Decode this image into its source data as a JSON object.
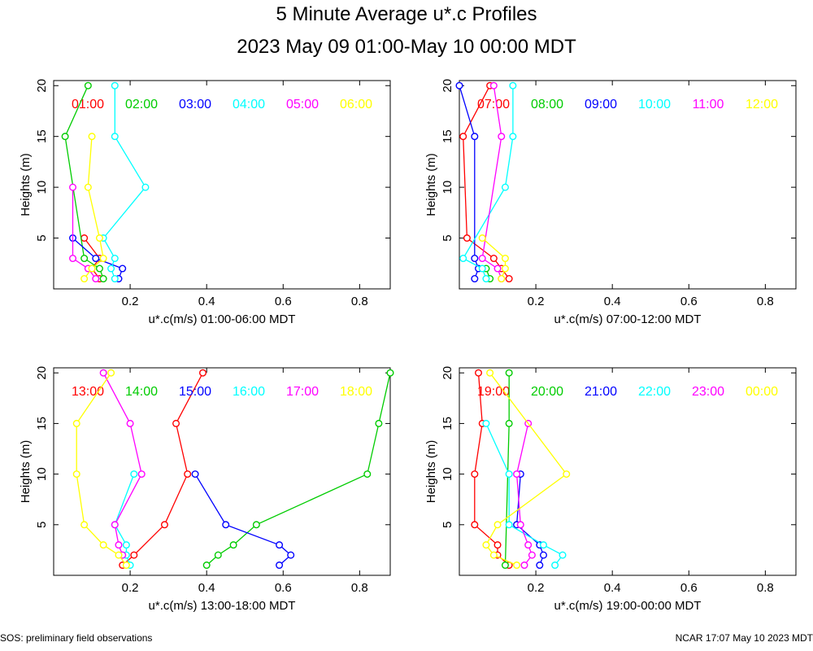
{
  "title": "5 Minute Average u*.c Profiles",
  "subtitle": "2023 May 09 01:00-May 10 00:00 MDT",
  "footer_left": "SOS: preliminary field observations",
  "footer_right": "NCAR 17:07 May 10 2023 MDT",
  "colors": [
    "#ff0000",
    "#00cc00",
    "#0000ff",
    "#00ffff",
    "#ff00ff",
    "#ffff00"
  ],
  "chart_data": [
    {
      "type": "line",
      "xlabel": "u*.c(m/s) 01:00-06:00 MDT",
      "ylabel": "Heights (m)",
      "xlim": [
        0,
        0.88
      ],
      "ylim": [
        0,
        20.5
      ],
      "xticks": [
        0.2,
        0.4,
        0.6,
        0.8
      ],
      "yticks": [
        5,
        10,
        15,
        20
      ],
      "series": [
        {
          "name": "01:00",
          "points": [
            [
              0.12,
              1
            ],
            [
              0.1,
              2
            ],
            [
              0.12,
              3
            ],
            [
              0.08,
              5
            ]
          ]
        },
        {
          "name": "02:00",
          "points": [
            [
              0.13,
              1
            ],
            [
              0.12,
              2
            ],
            [
              0.08,
              3
            ],
            [
              0.03,
              15
            ],
            [
              0.09,
              20
            ]
          ]
        },
        {
          "name": "03:00",
          "points": [
            [
              0.17,
              1
            ],
            [
              0.18,
              2
            ],
            [
              0.11,
              3
            ],
            [
              0.05,
              5
            ]
          ]
        },
        {
          "name": "04:00",
          "points": [
            [
              0.16,
              1
            ],
            [
              0.15,
              2
            ],
            [
              0.16,
              3
            ],
            [
              0.13,
              5
            ],
            [
              0.24,
              10
            ],
            [
              0.16,
              15
            ],
            [
              0.16,
              20
            ]
          ]
        },
        {
          "name": "05:00",
          "points": [
            [
              0.11,
              1
            ],
            [
              0.09,
              2
            ],
            [
              0.05,
              3
            ],
            [
              0.05,
              10
            ]
          ]
        },
        {
          "name": "06:00",
          "points": [
            [
              0.08,
              1
            ],
            [
              0.1,
              2
            ],
            [
              0.13,
              3
            ],
            [
              0.12,
              5
            ],
            [
              0.09,
              10
            ],
            [
              0.1,
              15
            ]
          ]
        }
      ]
    },
    {
      "type": "line",
      "xlabel": "u*.c(m/s) 07:00-12:00 MDT",
      "ylabel": "Heights (m)",
      "xlim": [
        0,
        0.88
      ],
      "ylim": [
        0,
        20.5
      ],
      "xticks": [
        0.2,
        0.4,
        0.6,
        0.8
      ],
      "yticks": [
        5,
        10,
        15,
        20
      ],
      "series": [
        {
          "name": "07:00",
          "points": [
            [
              0.13,
              1
            ],
            [
              0.11,
              2
            ],
            [
              0.09,
              3
            ],
            [
              0.02,
              5
            ],
            [
              0.01,
              15
            ],
            [
              0.08,
              20
            ]
          ]
        },
        {
          "name": "08:00",
          "points": [
            [
              0.08,
              1
            ],
            [
              0.07,
              2
            ]
          ]
        },
        {
          "name": "09:00",
          "points": [
            [
              0.04,
              1
            ],
            [
              0.05,
              2
            ],
            [
              0.04,
              3
            ],
            [
              0.04,
              15
            ],
            [
              0.0,
              20
            ]
          ]
        },
        {
          "name": "10:00",
          "points": [
            [
              0.07,
              1
            ],
            [
              0.06,
              2
            ],
            [
              0.01,
              3
            ],
            [
              0.12,
              10
            ],
            [
              0.14,
              15
            ],
            [
              0.14,
              20
            ]
          ]
        },
        {
          "name": "11:00",
          "points": [
            [
              0.11,
              1
            ],
            [
              0.1,
              2
            ],
            [
              0.06,
              3
            ],
            [
              0.11,
              15
            ],
            [
              0.09,
              20
            ]
          ]
        },
        {
          "name": "12:00",
          "points": [
            [
              0.11,
              1
            ],
            [
              0.12,
              2
            ],
            [
              0.12,
              3
            ],
            [
              0.06,
              5
            ]
          ]
        }
      ]
    },
    {
      "type": "line",
      "xlabel": "u*.c(m/s) 13:00-18:00 MDT",
      "ylabel": "Heights (m)",
      "xlim": [
        0,
        0.88
      ],
      "ylim": [
        0,
        20.5
      ],
      "xticks": [
        0.2,
        0.4,
        0.6,
        0.8
      ],
      "yticks": [
        5,
        10,
        15,
        20
      ],
      "series": [
        {
          "name": "13:00",
          "points": [
            [
              0.18,
              1
            ],
            [
              0.21,
              2
            ],
            [
              0.29,
              5
            ],
            [
              0.35,
              10
            ],
            [
              0.32,
              15
            ],
            [
              0.39,
              20
            ]
          ]
        },
        {
          "name": "14:00",
          "points": [
            [
              0.4,
              1
            ],
            [
              0.43,
              2
            ],
            [
              0.47,
              3
            ],
            [
              0.53,
              5
            ],
            [
              0.82,
              10
            ],
            [
              0.85,
              15
            ],
            [
              0.88,
              20
            ]
          ]
        },
        {
          "name": "15:00",
          "points": [
            [
              0.59,
              1
            ],
            [
              0.62,
              2
            ],
            [
              0.59,
              3
            ],
            [
              0.45,
              5
            ],
            [
              0.37,
              10
            ]
          ]
        },
        {
          "name": "16:00",
          "points": [
            [
              0.2,
              1
            ],
            [
              0.19,
              2
            ],
            [
              0.19,
              3
            ],
            [
              0.16,
              5
            ],
            [
              0.21,
              10
            ]
          ]
        },
        {
          "name": "17:00",
          "points": [
            [
              0.18,
              2
            ],
            [
              0.17,
              3
            ],
            [
              0.16,
              5
            ],
            [
              0.23,
              10
            ],
            [
              0.2,
              15
            ],
            [
              0.13,
              20
            ]
          ]
        },
        {
          "name": "18:00",
          "points": [
            [
              0.19,
              1
            ],
            [
              0.17,
              2
            ],
            [
              0.13,
              3
            ],
            [
              0.08,
              5
            ],
            [
              0.06,
              10
            ],
            [
              0.06,
              15
            ],
            [
              0.15,
              20
            ]
          ]
        }
      ]
    },
    {
      "type": "line",
      "xlabel": "u*.c(m/s) 19:00-00:00 MDT",
      "ylabel": "Heights (m)",
      "xlim": [
        0,
        0.88
      ],
      "ylim": [
        0,
        20.5
      ],
      "xticks": [
        0.2,
        0.4,
        0.6,
        0.8
      ],
      "yticks": [
        5,
        10,
        15,
        20
      ],
      "series": [
        {
          "name": "19:00",
          "points": [
            [
              0.13,
              1
            ],
            [
              0.1,
              2
            ],
            [
              0.1,
              3
            ],
            [
              0.04,
              5
            ],
            [
              0.04,
              10
            ],
            [
              0.06,
              15
            ],
            [
              0.05,
              20
            ]
          ]
        },
        {
          "name": "20:00",
          "points": [
            [
              0.12,
              1
            ],
            [
              0.13,
              15
            ],
            [
              0.13,
              20
            ]
          ]
        },
        {
          "name": "21:00",
          "points": [
            [
              0.21,
              1
            ],
            [
              0.22,
              2
            ],
            [
              0.21,
              3
            ],
            [
              0.15,
              5
            ],
            [
              0.16,
              10
            ]
          ]
        },
        {
          "name": "22:00",
          "points": [
            [
              0.25,
              1
            ],
            [
              0.27,
              2
            ],
            [
              0.22,
              3
            ],
            [
              0.13,
              5
            ],
            [
              0.13,
              10
            ],
            [
              0.07,
              15
            ]
          ]
        },
        {
          "name": "23:00",
          "points": [
            [
              0.17,
              1
            ],
            [
              0.19,
              2
            ],
            [
              0.18,
              3
            ],
            [
              0.16,
              5
            ],
            [
              0.15,
              10
            ],
            [
              0.18,
              15
            ]
          ]
        },
        {
          "name": "00:00",
          "points": [
            [
              0.15,
              1
            ],
            [
              0.09,
              2
            ],
            [
              0.07,
              3
            ],
            [
              0.1,
              5
            ],
            [
              0.28,
              10
            ],
            [
              0.08,
              20
            ]
          ]
        }
      ]
    }
  ]
}
